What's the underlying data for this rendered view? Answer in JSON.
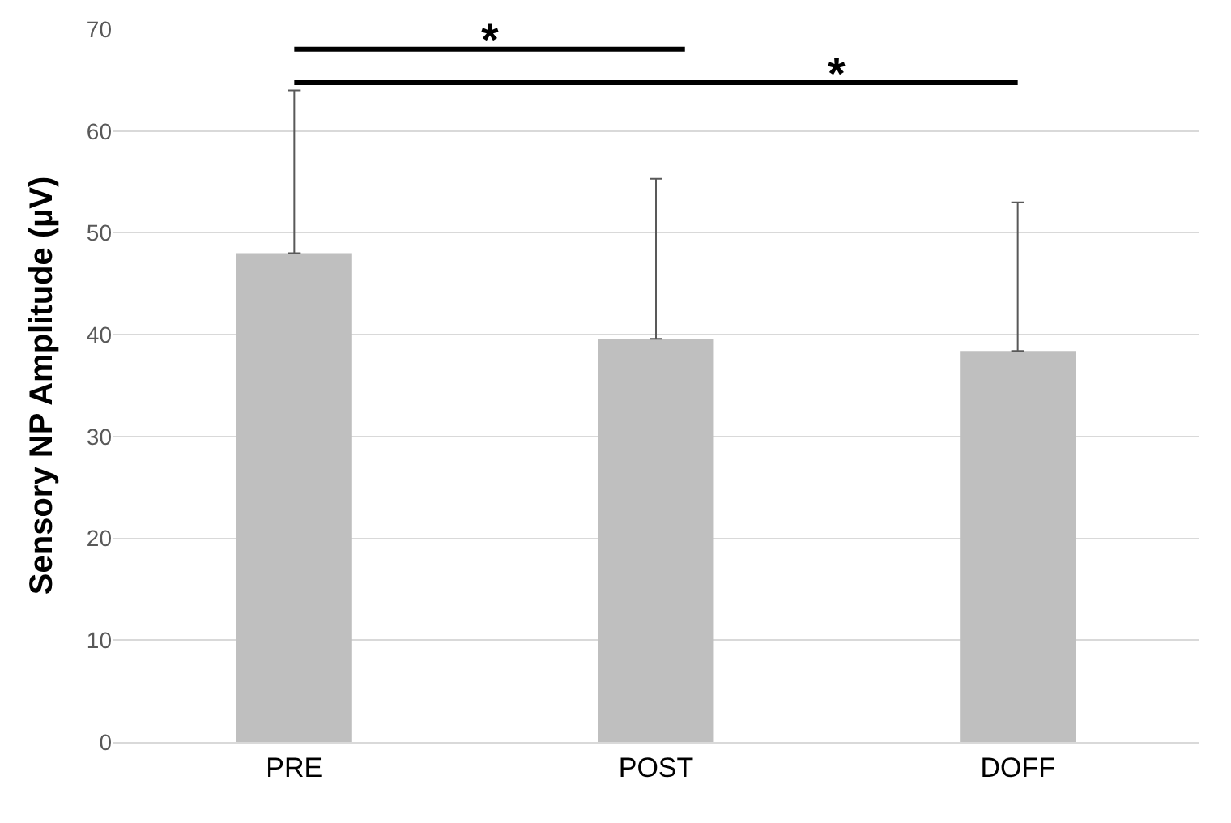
{
  "chart_data": {
    "type": "bar",
    "ylabel": "Sensory NP Amplitude (µV)",
    "categories": [
      "PRE",
      "POST",
      "DOFF"
    ],
    "values": [
      48,
      39.6,
      38.4
    ],
    "errors": [
      [
        48,
        64
      ],
      [
        39.6,
        55.3
      ],
      [
        38.4,
        53
      ]
    ],
    "color": "#bfbfbf",
    "ylim": [
      0,
      70
    ],
    "yticks": [
      0,
      10,
      20,
      30,
      40,
      50,
      60,
      70
    ],
    "grid": "y",
    "legend": false,
    "annotations": [
      "*",
      "*"
    ]
  }
}
